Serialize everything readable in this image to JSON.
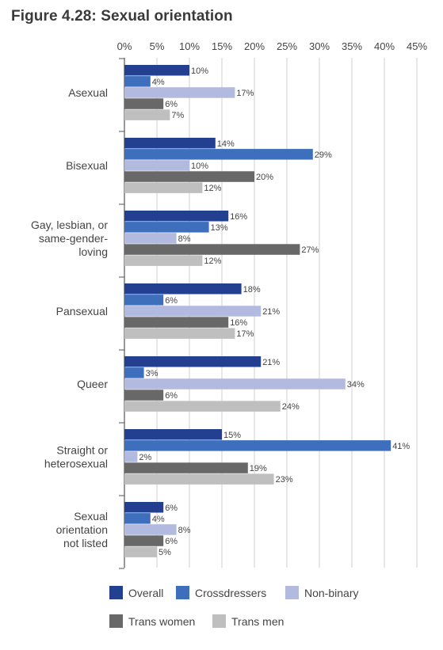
{
  "chart_data": {
    "type": "bar",
    "orientation": "horizontal",
    "title": "Figure 4.28: Sexual orientation",
    "xlim": [
      0,
      45
    ],
    "x_ticks": [
      "0%",
      "5%",
      "10%",
      "15%",
      "20%",
      "25%",
      "30%",
      "35%",
      "40%",
      "45%"
    ],
    "grid": true,
    "legend_position": "bottom",
    "categories": [
      [
        "Asexual"
      ],
      [
        "Bisexual"
      ],
      [
        "Gay, lesbian, or",
        "same-gender-",
        "loving"
      ],
      [
        "Pansexual"
      ],
      [
        "Queer"
      ],
      [
        "Straight or",
        "heterosexual"
      ],
      [
        "Sexual",
        "orientation",
        "not listed"
      ]
    ],
    "series": [
      {
        "name": "Overall",
        "color": "#233f8f",
        "values": [
          10,
          14,
          16,
          18,
          21,
          15,
          6
        ]
      },
      {
        "name": "Crossdressers",
        "color": "#3e6fbd",
        "values": [
          4,
          29,
          13,
          6,
          3,
          41,
          4
        ]
      },
      {
        "name": "Non-binary",
        "color": "#b3bae0",
        "values": [
          17,
          10,
          8,
          21,
          34,
          2,
          8
        ]
      },
      {
        "name": "Trans women",
        "color": "#686868",
        "values": [
          6,
          20,
          27,
          16,
          6,
          19,
          6
        ]
      },
      {
        "name": "Trans men",
        "color": "#bfbfbf",
        "values": [
          7,
          12,
          12,
          17,
          24,
          23,
          5
        ]
      }
    ],
    "value_suffix": "%"
  }
}
